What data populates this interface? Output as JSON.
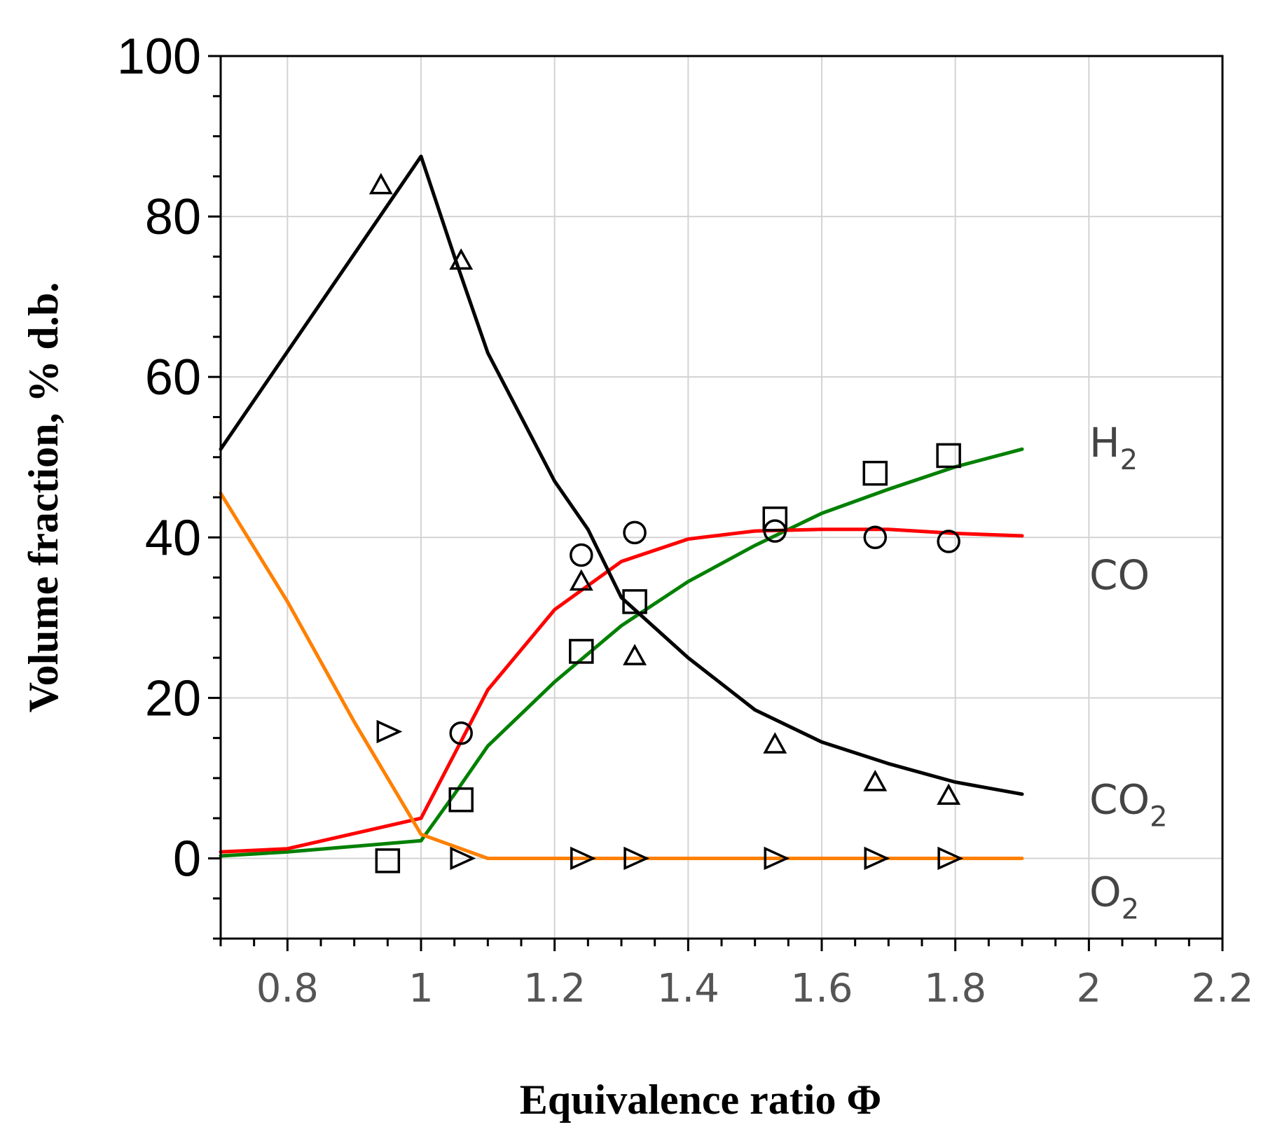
{
  "chart_data": {
    "type": "line",
    "xlabel": "Equivalence ratio Φ",
    "ylabel": "Volume fraction, % d.b.",
    "xlim": [
      0.7,
      2.2
    ],
    "ylim": [
      -10,
      100
    ],
    "grid": true,
    "x_ticks": [
      0.8,
      1,
      1.2,
      1.4,
      1.6,
      1.8,
      2,
      2.2
    ],
    "x_tick_labels": [
      "0.8",
      "1",
      "1.2",
      "1.4",
      "1.6",
      "1.8",
      "2",
      "2.2"
    ],
    "y_ticks": [
      0,
      20,
      40,
      60,
      80,
      100
    ],
    "y_tick_labels": [
      "0",
      "20",
      "40",
      "60",
      "80",
      "100"
    ],
    "series": [
      {
        "name": "H2",
        "label_main": "H",
        "label_sub": "2",
        "color": "#008000",
        "marker": "square",
        "line": {
          "x": [
            0.7,
            0.8,
            1.0,
            1.05,
            1.1,
            1.2,
            1.3,
            1.4,
            1.5,
            1.6,
            1.7,
            1.8,
            1.9
          ],
          "y": [
            0.3,
            0.8,
            2.2,
            8,
            14,
            22,
            29,
            34.5,
            39,
            43,
            46,
            48.8,
            51
          ]
        },
        "points": {
          "x": [
            0.95,
            1.06,
            1.24,
            1.32,
            1.53,
            1.68,
            1.79
          ],
          "y": [
            -0.3,
            7.3,
            25.8,
            32,
            42.3,
            48,
            50.2
          ]
        }
      },
      {
        "name": "CO",
        "label_main": "CO",
        "label_sub": "",
        "color": "#ff0000",
        "marker": "circle",
        "line": {
          "x": [
            0.7,
            0.8,
            1.0,
            1.05,
            1.1,
            1.2,
            1.3,
            1.4,
            1.5,
            1.6,
            1.7,
            1.8,
            1.9
          ],
          "y": [
            0.8,
            1.2,
            5,
            13,
            21,
            31,
            37,
            39.8,
            40.8,
            41,
            41,
            40.5,
            40.2
          ]
        },
        "points": {
          "x": [
            1.06,
            1.24,
            1.32,
            1.53,
            1.68,
            1.79
          ],
          "y": [
            15.6,
            37.8,
            40.6,
            40.8,
            40,
            39.5
          ]
        }
      },
      {
        "name": "CO2",
        "label_main": "CO",
        "label_sub": "2",
        "color": "#000000",
        "marker": "triangle-up",
        "line": {
          "x": [
            0.7,
            1.0,
            1.05,
            1.1,
            1.2,
            1.25,
            1.3,
            1.4,
            1.5,
            1.6,
            1.7,
            1.8,
            1.9
          ],
          "y": [
            51,
            87.5,
            75,
            63,
            47,
            41,
            32.5,
            25,
            18.5,
            14.5,
            11.8,
            9.5,
            8
          ]
        },
        "points": {
          "x": [
            0.94,
            1.06,
            1.24,
            1.32,
            1.53,
            1.68,
            1.79
          ],
          "y": [
            83.9,
            74.5,
            34.5,
            25.2,
            14.2,
            9.5,
            7.8
          ]
        }
      },
      {
        "name": "O2",
        "label_main": "O",
        "label_sub": "2",
        "color": "#ff8000",
        "marker": "triangle-right",
        "line": {
          "x": [
            0.7,
            0.8,
            0.9,
            1.0,
            1.05,
            1.1,
            1.2,
            1.3,
            1.4,
            1.5,
            1.6,
            1.7,
            1.8,
            1.9
          ],
          "y": [
            45.5,
            32,
            17,
            3,
            1.5,
            0,
            0,
            0,
            0,
            0,
            0,
            0,
            0,
            0
          ]
        },
        "points": {
          "x": [
            0.95,
            1.06,
            1.24,
            1.32,
            1.53,
            1.68,
            1.79
          ],
          "y": [
            15.8,
            0,
            0,
            0,
            0,
            0,
            0
          ]
        }
      }
    ]
  }
}
